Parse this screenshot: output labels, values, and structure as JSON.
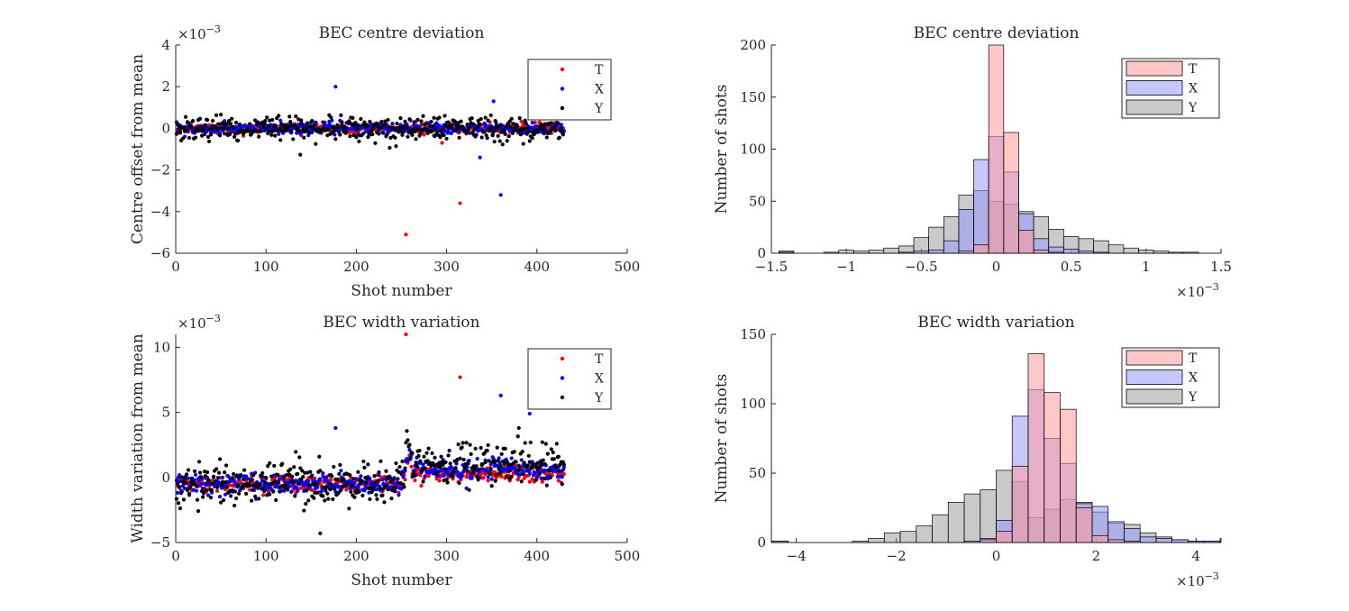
{
  "colors": {
    "T": "#ff0000",
    "X": "#0000ff",
    "Y": "#000000",
    "hist_T": "#ff9999",
    "hist_X": "#9999ff",
    "hist_Y": "#9e9e9e"
  },
  "chart_data": [
    {
      "id": "p1",
      "type": "scatter",
      "title": "BEC centre deviation",
      "xlabel": "Shot number",
      "ylabel": "Centre offset from mean",
      "exponent": "×10",
      "exponent_power": "−3",
      "xlim": [
        0,
        500
      ],
      "ylim": [
        -6,
        4
      ],
      "xticks": [
        0,
        100,
        200,
        300,
        400,
        500
      ],
      "yticks": [
        -6,
        -4,
        -2,
        0,
        2,
        4
      ],
      "legend": {
        "position": "top-right",
        "entries": [
          "T",
          "X",
          "Y"
        ]
      },
      "n_points": 430,
      "outliers": {
        "T": [
          [
            255,
            -5.1
          ],
          [
            315,
            -3.6
          ],
          [
            295,
            -0.7
          ]
        ],
        "X": [
          [
            177,
            2.0
          ],
          [
            360,
            -3.2
          ],
          [
            337,
            -1.4
          ],
          [
            352,
            1.3
          ]
        ],
        "Y": []
      },
      "scale": {
        "T": 0.11,
        "X": 0.14,
        "Y": 0.3
      }
    },
    {
      "id": "p2",
      "type": "bar",
      "title": "BEC centre deviation",
      "xlabel": "",
      "ylabel": "Number of shots",
      "exponent": "×10",
      "exponent_power": "−3",
      "xlim": [
        -1.5,
        1.5
      ],
      "ylim": [
        0,
        200
      ],
      "xticks": [
        -1.5,
        -1,
        -0.5,
        0,
        0.5,
        1,
        1.5
      ],
      "yticks": [
        0,
        50,
        100,
        150,
        200
      ],
      "legend": {
        "position": "top-right",
        "entries": [
          "T",
          "X",
          "Y"
        ]
      },
      "bin_width": 0.1,
      "bin_start": -1.55,
      "series": [
        {
          "name": "T",
          "values": [
            0,
            0,
            0,
            0,
            0,
            0,
            0,
            0,
            0,
            0,
            0,
            0,
            0,
            2,
            8,
            200,
            116,
            22,
            3,
            1,
            0,
            0,
            0,
            0,
            0,
            0,
            0,
            0,
            0,
            0
          ]
        },
        {
          "name": "X",
          "values": [
            0,
            1,
            0,
            0,
            0,
            0,
            0,
            0,
            0,
            1,
            2,
            3,
            12,
            42,
            90,
            112,
            78,
            38,
            14,
            6,
            4,
            2,
            1,
            0,
            0,
            0,
            0,
            0,
            0,
            0
          ]
        },
        {
          "name": "Y",
          "values": [
            0,
            2,
            0,
            0,
            1,
            3,
            2,
            3,
            5,
            7,
            15,
            25,
            35,
            56,
            60,
            50,
            47,
            40,
            35,
            23,
            16,
            14,
            12,
            8,
            5,
            3,
            2,
            1,
            1,
            0
          ]
        }
      ]
    },
    {
      "id": "p3",
      "type": "scatter",
      "title": "BEC width variation",
      "xlabel": "Shot number",
      "ylabel": "Width variation from mean",
      "exponent": "×10",
      "exponent_power": "−3",
      "xlim": [
        0,
        500
      ],
      "ylim": [
        -5,
        11
      ],
      "xticks": [
        0,
        100,
        200,
        300,
        400,
        500
      ],
      "yticks": [
        -5,
        0,
        5,
        10
      ],
      "legend": {
        "position": "top-right",
        "entries": [
          "T",
          "X",
          "Y"
        ]
      },
      "n_points": 430,
      "outliers": {
        "T": [
          [
            255,
            11.0
          ],
          [
            315,
            7.7
          ]
        ],
        "X": [
          [
            177,
            3.8
          ],
          [
            360,
            6.3
          ],
          [
            392,
            4.9
          ]
        ],
        "Y": [
          [
            160,
            -4.3
          ],
          [
            380,
            3.8
          ]
        ]
      },
      "scale": {
        "T": 0.3,
        "X": 0.4,
        "Y": 0.8
      }
    },
    {
      "id": "p4",
      "type": "bar",
      "title": "BEC width variation",
      "xlabel": "",
      "ylabel": "Number of shots",
      "exponent": "×10",
      "exponent_power": "−3",
      "xlim": [
        -4.5,
        4.5
      ],
      "ylim": [
        0,
        150
      ],
      "xticks": [
        -4,
        -2,
        0,
        2,
        4
      ],
      "yticks": [
        0,
        50,
        100,
        150
      ],
      "legend": {
        "position": "top-right",
        "entries": [
          "T",
          "X",
          "Y"
        ]
      },
      "bin_width": 0.32,
      "bin_start": -4.48,
      "series": [
        {
          "name": "T",
          "values": [
            0,
            0,
            0,
            0,
            0,
            0,
            0,
            0,
            0,
            0,
            0,
            0,
            0,
            2,
            8,
            55,
            136,
            108,
            96,
            25,
            5,
            2,
            1,
            0,
            0,
            0,
            0,
            0,
            0,
            0
          ]
        },
        {
          "name": "X",
          "values": [
            1,
            0,
            0,
            0,
            0,
            0,
            0,
            0,
            0,
            0,
            0,
            0,
            1,
            3,
            16,
            91,
            110,
            75,
            57,
            28,
            26,
            15,
            10,
            4,
            3,
            2,
            1,
            1,
            0,
            0
          ]
        },
        {
          "name": "Y",
          "values": [
            1,
            0,
            0,
            0,
            0,
            1,
            3,
            7,
            8,
            12,
            20,
            29,
            35,
            38,
            52,
            44,
            18,
            24,
            31,
            29,
            22,
            14,
            13,
            7,
            4,
            2,
            1,
            1,
            3,
            0
          ]
        }
      ]
    }
  ]
}
